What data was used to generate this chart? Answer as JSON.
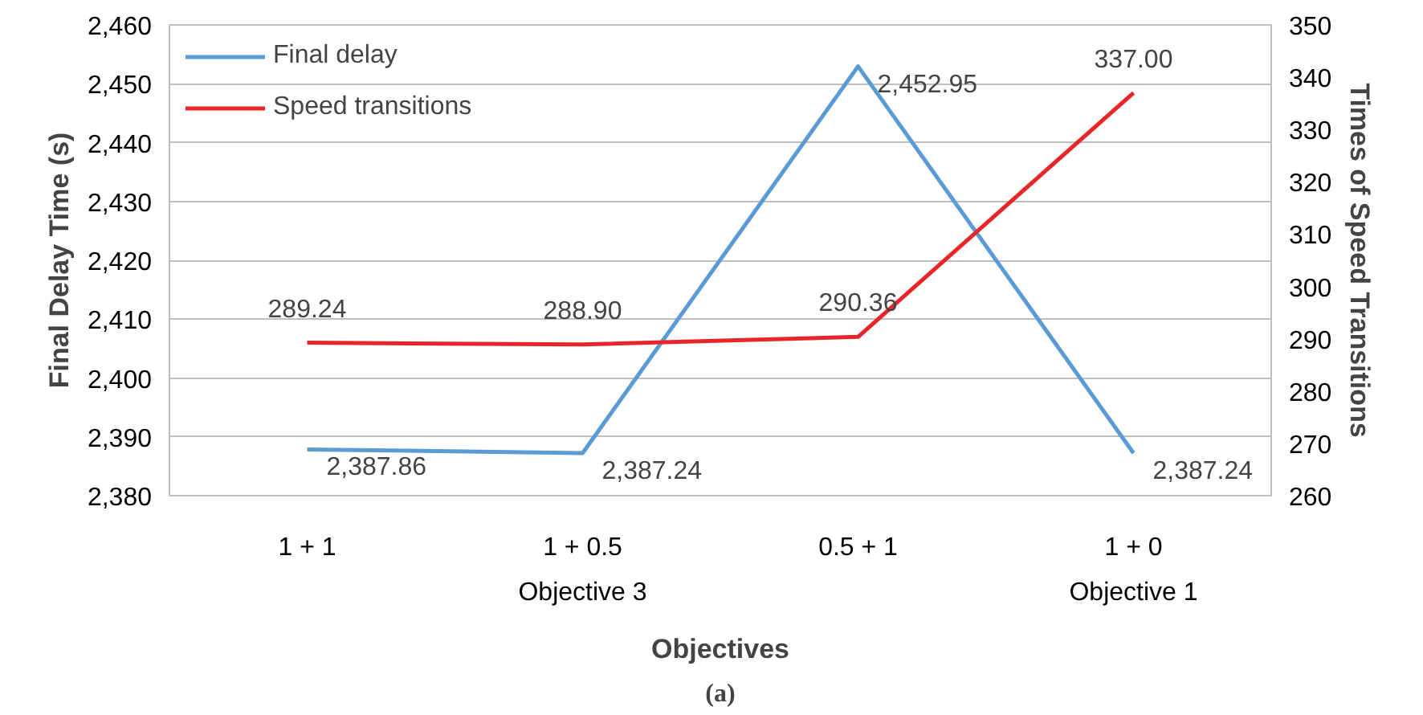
{
  "chart_data": {
    "type": "line",
    "xlabel": "Objectives",
    "ylabel": "Final Delay Time (s)",
    "y2label": "Times of Speed Transitions",
    "categories": [
      "1 + 1",
      "1 + 0.5",
      "0.5 + 1",
      "1 + 0"
    ],
    "series": [
      {
        "name": "Final delay",
        "color": "#5b9bd5",
        "values": [
          2387.86,
          2387.24,
          2452.95,
          2387.24
        ],
        "value_labels": [
          "2,387.86",
          "2,387.24",
          "2,452.95",
          "2,387.24"
        ]
      },
      {
        "name": "Speed transitions",
        "color": "#e8262a",
        "axis": "y2",
        "values": [
          289.24,
          288.9,
          290.36,
          337.0
        ],
        "value_labels": [
          "289.24",
          "288.90",
          "290.36",
          "337.00"
        ]
      }
    ],
    "ylim": [
      2380,
      2460
    ],
    "yticks": [
      {
        "value": 2380,
        "label": "2,380"
      },
      {
        "value": 2390,
        "label": "2,390"
      },
      {
        "value": 2400,
        "label": "2,400"
      },
      {
        "value": 2410,
        "label": "2,410"
      },
      {
        "value": 2420,
        "label": "2,420"
      },
      {
        "value": 2430,
        "label": "2,430"
      },
      {
        "value": 2440,
        "label": "2,440"
      },
      {
        "value": 2450,
        "label": "2,450"
      },
      {
        "value": 2460,
        "label": "2,460"
      }
    ],
    "y2lim": [
      260,
      350
    ],
    "y2ticks": [
      260,
      270,
      280,
      290,
      300,
      310,
      320,
      330,
      340,
      350
    ],
    "grid": "y",
    "legend": "top left",
    "marker": "none",
    "line_style": "solid",
    "annotations": [
      "Objective 3",
      "Objective 1",
      "(a)"
    ]
  }
}
